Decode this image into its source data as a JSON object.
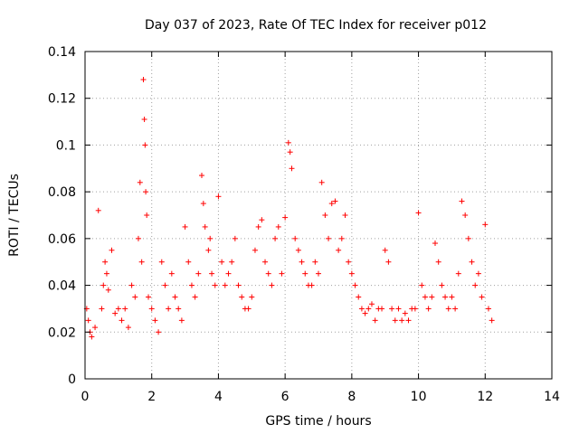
{
  "chart_data": {
    "type": "scatter",
    "title": "Day 037 of 2023, Rate Of TEC Index for receiver p012",
    "xlabel": "GPS time / hours",
    "ylabel": "ROTI / TECUs",
    "xlim": [
      0,
      14
    ],
    "ylim": [
      0,
      0.14
    ],
    "x_ticks": [
      "0",
      "2",
      "4",
      "6",
      "8",
      "10",
      "12",
      "14"
    ],
    "y_ticks": [
      "0",
      "0.02",
      "0.04",
      "0.06",
      "0.08",
      "0.1",
      "0.12",
      "0.14"
    ],
    "grid": true,
    "marker": "+",
    "color": "#ff0000",
    "series": [
      {
        "name": "",
        "x": [
          0.05,
          0.1,
          0.15,
          0.2,
          0.3,
          0.4,
          0.5,
          0.55,
          0.6,
          0.65,
          0.7,
          0.8,
          0.9,
          1.0,
          1.1,
          1.2,
          1.3,
          1.4,
          1.5,
          1.6,
          1.65,
          1.7,
          1.75,
          1.78,
          1.8,
          1.82,
          1.85,
          1.9,
          2.0,
          2.1,
          2.2,
          2.3,
          2.4,
          2.5,
          2.6,
          2.7,
          2.8,
          2.9,
          3.0,
          3.1,
          3.2,
          3.3,
          3.4,
          3.5,
          3.55,
          3.6,
          3.7,
          3.75,
          3.8,
          3.9,
          4.0,
          4.1,
          4.2,
          4.3,
          4.4,
          4.5,
          4.6,
          4.7,
          4.8,
          4.9,
          5.0,
          5.1,
          5.2,
          5.3,
          5.4,
          5.5,
          5.6,
          5.7,
          5.8,
          5.9,
          6.0,
          6.1,
          6.15,
          6.2,
          6.3,
          6.4,
          6.5,
          6.6,
          6.7,
          6.8,
          6.9,
          7.0,
          7.1,
          7.2,
          7.3,
          7.4,
          7.5,
          7.6,
          7.7,
          7.8,
          7.9,
          8.0,
          8.1,
          8.2,
          8.3,
          8.4,
          8.5,
          8.6,
          8.7,
          8.8,
          8.9,
          9.0,
          9.1,
          9.2,
          9.3,
          9.4,
          9.5,
          9.6,
          9.7,
          9.8,
          9.9,
          10.0,
          10.1,
          10.2,
          10.3,
          10.4,
          10.5,
          10.6,
          10.7,
          10.8,
          10.9,
          11.0,
          11.1,
          11.2,
          11.3,
          11.4,
          11.5,
          11.6,
          11.7,
          11.8,
          11.9,
          12.0,
          12.1,
          12.2
        ],
        "y": [
          0.03,
          0.025,
          0.02,
          0.018,
          0.022,
          0.072,
          0.03,
          0.04,
          0.05,
          0.045,
          0.038,
          0.055,
          0.028,
          0.03,
          0.025,
          0.03,
          0.022,
          0.04,
          0.035,
          0.06,
          0.084,
          0.05,
          0.128,
          0.111,
          0.1,
          0.08,
          0.07,
          0.035,
          0.03,
          0.025,
          0.02,
          0.05,
          0.04,
          0.03,
          0.045,
          0.035,
          0.03,
          0.025,
          0.065,
          0.05,
          0.04,
          0.035,
          0.045,
          0.087,
          0.075,
          0.065,
          0.055,
          0.06,
          0.045,
          0.04,
          0.078,
          0.05,
          0.04,
          0.045,
          0.05,
          0.06,
          0.04,
          0.035,
          0.03,
          0.03,
          0.035,
          0.055,
          0.065,
          0.068,
          0.05,
          0.045,
          0.04,
          0.06,
          0.065,
          0.045,
          0.069,
          0.101,
          0.097,
          0.09,
          0.06,
          0.055,
          0.05,
          0.045,
          0.04,
          0.04,
          0.05,
          0.045,
          0.084,
          0.07,
          0.06,
          0.075,
          0.076,
          0.055,
          0.06,
          0.07,
          0.05,
          0.045,
          0.04,
          0.035,
          0.03,
          0.028,
          0.03,
          0.032,
          0.025,
          0.03,
          0.03,
          0.055,
          0.05,
          0.03,
          0.025,
          0.03,
          0.025,
          0.028,
          0.025,
          0.03,
          0.03,
          0.071,
          0.04,
          0.035,
          0.03,
          0.035,
          0.058,
          0.05,
          0.04,
          0.035,
          0.03,
          0.035,
          0.03,
          0.045,
          0.076,
          0.07,
          0.06,
          0.05,
          0.04,
          0.045,
          0.035,
          0.066,
          0.03,
          0.025
        ]
      }
    ]
  }
}
